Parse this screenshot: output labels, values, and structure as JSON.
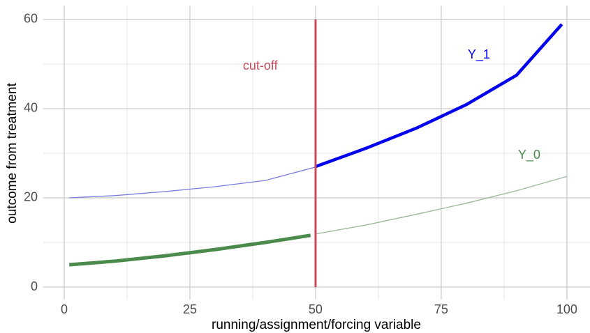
{
  "chart_data": {
    "type": "line",
    "xlabel": "running/assignment/forcing variable",
    "ylabel": "outcome from treatment",
    "xlim": [
      -4.17,
      104.6
    ],
    "ylim": [
      -2.8,
      63.1
    ],
    "xticks": [
      0,
      25,
      50,
      75,
      100
    ],
    "yticks": [
      0,
      20,
      40,
      60
    ],
    "xminor": [
      12.5,
      37.5,
      62.5,
      87.5
    ],
    "yminor": [
      10,
      30,
      50
    ],
    "grid": true,
    "series": [
      {
        "color": "#7a7ae0",
        "width": 1.3,
        "x": [
          1,
          10,
          20,
          30,
          40,
          50
        ],
        "values": [
          20.0,
          20.5,
          21.4,
          22.5,
          23.9,
          26.9
        ]
      },
      {
        "color": "#0000ee",
        "width": 4.5,
        "x": [
          50,
          60,
          70,
          80,
          90,
          99
        ],
        "values": [
          27.0,
          31.1,
          35.6,
          40.9,
          47.5,
          58.9
        ]
      },
      {
        "color": "#9cb89c",
        "width": 1.3,
        "x": [
          50,
          60,
          70,
          80,
          90,
          100
        ],
        "values": [
          11.9,
          13.9,
          16.3,
          18.8,
          21.6,
          24.8
        ]
      },
      {
        "color": "#4a8a4a",
        "width": 5,
        "x": [
          1,
          10,
          20,
          30,
          40,
          49
        ],
        "values": [
          5.0,
          5.8,
          7.0,
          8.4,
          10.0,
          11.6
        ]
      },
      {
        "color": "#c44c5c",
        "width": 3,
        "x": [
          50,
          50
        ],
        "values": [
          0,
          60
        ]
      }
    ],
    "annotations": [
      {
        "text": "cut-off",
        "x": 39,
        "y": 49.5,
        "color": "#c44c5c"
      },
      {
        "text": "Y_1",
        "x": 82.5,
        "y": 52,
        "color": "#0000ee"
      },
      {
        "text": "Y_0",
        "x": 92.5,
        "y": 29.5,
        "color": "#4a8a4a"
      }
    ]
  }
}
